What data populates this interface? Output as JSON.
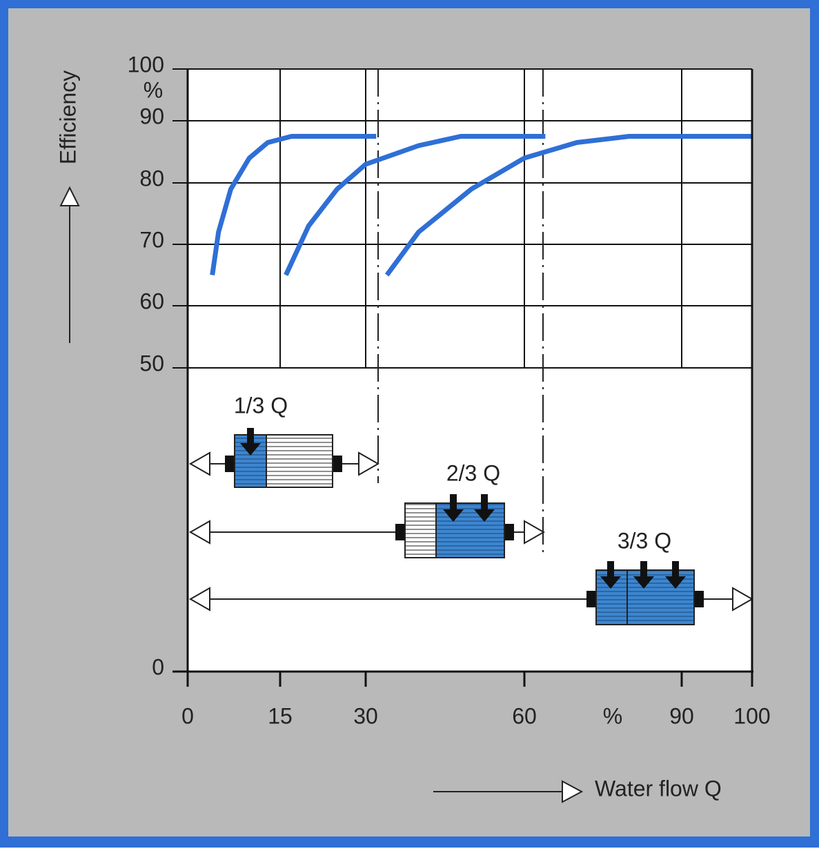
{
  "chart_data": {
    "type": "line",
    "x_label": "Water flow Q",
    "y_label": "Efficiency",
    "x_unit": "%",
    "y_unit": "%",
    "xlim": [
      0,
      100
    ],
    "ylim": [
      0,
      100
    ],
    "xticks": [
      0,
      15,
      30,
      60,
      90,
      100
    ],
    "yticks": [
      0,
      50,
      60,
      70,
      80,
      90,
      100
    ],
    "grid": true,
    "series": [
      {
        "color": "#2f6fd6",
        "x": [
          4,
          5,
          7,
          10,
          13,
          17,
          20,
          32
        ],
        "values": [
          65,
          72,
          79,
          84,
          86.5,
          87.5,
          87.5,
          87.5
        ]
      },
      {
        "color": "#2f6fd6",
        "x": [
          16,
          20,
          25,
          30,
          40,
          48,
          64
        ],
        "values": [
          65,
          73,
          79,
          83,
          86,
          87.5,
          87.5
        ]
      },
      {
        "color": "#2f6fd6",
        "x": [
          34,
          40,
          50,
          60,
          70,
          80,
          100
        ],
        "values": [
          65,
          72,
          79,
          84,
          86.5,
          87.5,
          87.5
        ]
      }
    ],
    "annotations": [
      "1/3 Q",
      "2/3 Q",
      "3/3 Q"
    ]
  }
}
